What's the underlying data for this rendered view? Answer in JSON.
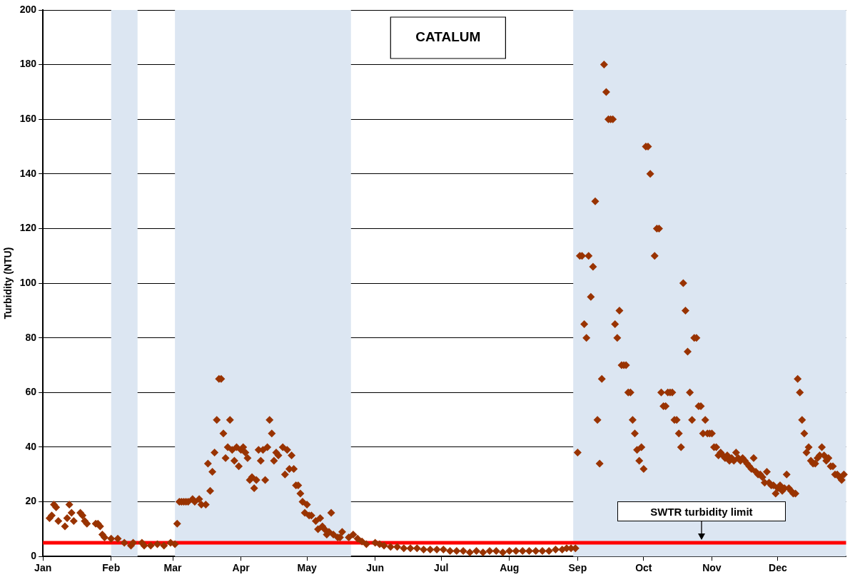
{
  "chart_data": {
    "type": "scatter",
    "title": "CATALUM",
    "ylabel": "Turbidity (NTU)",
    "xlim": [
      "--01-01",
      "--12-31"
    ],
    "xticks": [
      {
        "value": "--01-01",
        "label": "Jan"
      },
      {
        "value": "--02-01",
        "label": "Feb"
      },
      {
        "value": "--03-01",
        "label": "Mar"
      },
      {
        "value": "--04-01",
        "label": "Apr"
      },
      {
        "value": "--05-01",
        "label": "May"
      },
      {
        "value": "--06-01",
        "label": "Jun"
      },
      {
        "value": "--07-01",
        "label": "Jul"
      },
      {
        "value": "--08-01",
        "label": "Aug"
      },
      {
        "value": "--09-01",
        "label": "Sep"
      },
      {
        "value": "--10-01",
        "label": "Oct"
      },
      {
        "value": "--11-01",
        "label": "Nov"
      },
      {
        "value": "--12-01",
        "label": "Dec"
      }
    ],
    "ylim": [
      0,
      200
    ],
    "yticks": [
      0,
      20,
      40,
      60,
      80,
      100,
      120,
      140,
      160,
      180,
      200
    ],
    "grid": "y",
    "legend": false,
    "marker": "diamond",
    "bands": [
      {
        "axis": "x",
        "from": "--02-01",
        "to": "--02-12",
        "color": "#dce6f2"
      },
      {
        "axis": "x",
        "from": "--03-02",
        "to": "--05-20",
        "color": "#dce6f2"
      },
      {
        "axis": "x",
        "from": "--08-30",
        "to": "--12-31",
        "color": "#dce6f2"
      }
    ],
    "ref_lines": [
      {
        "axis": "y",
        "value": 5,
        "label": "SWTR turbidity limit",
        "color": "#ff0000"
      }
    ],
    "series": [
      {
        "color": "#993300",
        "x": [
          "--01-04",
          "--01-05",
          "--01-06",
          "--01-07",
          "--01-08",
          "--01-11",
          "--01-12",
          "--01-13",
          "--01-14",
          "--01-15",
          "--01-18",
          "--01-19",
          "--01-20",
          "--01-21",
          "--01-25",
          "--01-26",
          "--01-27",
          "--01-28",
          "--01-29",
          "--02-01",
          "--02-04",
          "--02-07",
          "--02-10",
          "--02-11",
          "--02-15",
          "--02-16",
          "--02-19",
          "--02-22",
          "--02-25",
          "--02-28",
          "--03-02",
          "--03-03",
          "--03-04",
          "--03-05",
          "--03-06",
          "--03-07",
          "--03-08",
          "--03-10",
          "--03-11",
          "--03-13",
          "--03-14",
          "--03-16",
          "--03-17",
          "--03-18",
          "--03-19",
          "--03-20",
          "--03-21",
          "--03-22",
          "--03-23",
          "--03-24",
          "--03-25",
          "--03-26",
          "--03-27",
          "--03-28",
          "--03-29",
          "--03-30",
          "--03-31",
          "--04-01",
          "--04-02",
          "--04-03",
          "--04-04",
          "--04-05",
          "--04-06",
          "--04-07",
          "--04-08",
          "--04-09",
          "--04-10",
          "--04-11",
          "--04-12",
          "--04-13",
          "--04-14",
          "--04-15",
          "--04-16",
          "--04-17",
          "--04-18",
          "--04-20",
          "--04-21",
          "--04-22",
          "--04-23",
          "--04-24",
          "--04-25",
          "--04-26",
          "--04-27",
          "--04-28",
          "--04-29",
          "--04-30",
          "--05-01",
          "--05-02",
          "--05-03",
          "--05-05",
          "--05-06",
          "--05-07",
          "--05-08",
          "--05-09",
          "--05-10",
          "--05-11",
          "--05-12",
          "--05-13",
          "--05-15",
          "--05-16",
          "--05-17",
          "--05-20",
          "--05-22",
          "--05-24",
          "--05-26",
          "--05-28",
          "--06-01",
          "--06-03",
          "--06-05",
          "--06-08",
          "--06-11",
          "--06-14",
          "--06-17",
          "--06-20",
          "--06-23",
          "--06-26",
          "--06-29",
          "--07-02",
          "--07-05",
          "--07-08",
          "--07-11",
          "--07-14",
          "--07-17",
          "--07-20",
          "--07-23",
          "--07-26",
          "--07-29",
          "--08-01",
          "--08-04",
          "--08-07",
          "--08-10",
          "--08-13",
          "--08-16",
          "--08-19",
          "--08-22",
          "--08-25",
          "--08-27",
          "--08-29",
          "--08-31",
          "--09-01",
          "--09-02",
          "--09-03",
          "--09-04",
          "--09-05",
          "--09-06",
          "--09-07",
          "--09-08",
          "--09-09",
          "--09-10",
          "--09-11",
          "--09-12",
          "--09-13",
          "--09-14",
          "--09-15",
          "--09-16",
          "--09-17",
          "--09-18",
          "--09-19",
          "--09-20",
          "--09-21",
          "--09-22",
          "--09-23",
          "--09-24",
          "--09-25",
          "--09-26",
          "--09-27",
          "--09-28",
          "--09-29",
          "--09-30",
          "--10-01",
          "--10-02",
          "--10-03",
          "--10-04",
          "--10-06",
          "--10-07",
          "--10-08",
          "--10-09",
          "--10-10",
          "--10-11",
          "--10-12",
          "--10-13",
          "--10-14",
          "--10-15",
          "--10-16",
          "--10-17",
          "--10-18",
          "--10-19",
          "--10-20",
          "--10-21",
          "--10-22",
          "--10-23",
          "--10-24",
          "--10-25",
          "--10-26",
          "--10-27",
          "--10-28",
          "--10-29",
          "--10-30",
          "--10-31",
          "--11-01",
          "--11-02",
          "--11-03",
          "--11-04",
          "--11-05",
          "--11-06",
          "--11-07",
          "--11-08",
          "--11-09",
          "--11-10",
          "--11-11",
          "--11-12",
          "--11-13",
          "--11-14",
          "--11-15",
          "--11-16",
          "--11-17",
          "--11-18",
          "--11-19",
          "--11-20",
          "--11-21",
          "--11-22",
          "--11-23",
          "--11-24",
          "--11-25",
          "--11-26",
          "--11-27",
          "--11-28",
          "--11-29",
          "--11-30",
          "--12-01",
          "--12-02",
          "--12-03",
          "--12-04",
          "--12-05",
          "--12-06",
          "--12-07",
          "--12-08",
          "--12-09",
          "--12-10",
          "--12-11",
          "--12-12",
          "--12-13",
          "--12-14",
          "--12-15",
          "--12-16",
          "--12-17",
          "--12-18",
          "--12-19",
          "--12-20",
          "--12-21",
          "--12-22",
          "--12-23",
          "--12-24",
          "--12-25",
          "--12-26",
          "--12-27",
          "--12-28",
          "--12-29",
          "--12-30",
          "--12-31"
        ],
        "values": [
          14,
          15,
          19,
          18,
          13,
          11,
          14,
          19,
          16,
          13,
          16,
          15,
          13,
          12,
          12,
          12,
          11,
          8,
          7,
          6.5,
          6.5,
          5,
          4,
          5,
          5,
          4,
          4,
          4.5,
          4,
          5,
          4.5,
          12,
          20,
          20,
          20,
          20,
          20,
          21,
          20,
          21,
          19,
          19,
          34,
          24,
          31,
          38,
          50,
          65,
          65,
          45,
          36,
          40,
          50,
          39,
          35,
          40,
          33,
          39,
          40,
          38,
          36,
          28,
          29,
          25,
          28,
          39,
          35,
          39,
          28,
          40,
          50,
          45,
          35,
          38,
          37,
          40,
          30,
          39,
          32,
          37,
          32,
          26,
          26,
          23,
          20,
          16,
          19,
          15,
          15,
          13,
          10,
          14,
          11,
          10,
          8,
          9,
          16,
          8,
          7,
          7,
          9,
          7,
          8,
          6.5,
          5.5,
          4.5,
          5,
          4.5,
          4,
          3.5,
          3.5,
          3,
          3,
          3,
          2.5,
          2.5,
          2.5,
          2.5,
          2,
          2,
          2,
          1.5,
          2,
          1.5,
          2,
          2,
          1.5,
          2,
          2,
          2,
          2,
          2,
          2,
          2,
          2.5,
          2.5,
          3,
          3,
          3,
          38,
          110,
          110,
          85,
          80,
          110,
          95,
          106,
          130,
          50,
          34,
          65,
          180,
          170,
          160,
          160,
          160,
          85,
          80,
          90,
          70,
          70,
          70,
          60,
          60,
          50,
          45,
          39,
          35,
          40,
          32,
          150,
          150,
          140,
          110,
          120,
          120,
          60,
          55,
          55,
          60,
          60,
          60,
          50,
          50,
          45,
          40,
          100,
          90,
          75,
          60,
          50,
          80,
          80,
          55,
          55,
          45,
          50,
          45,
          45,
          45,
          40,
          40,
          37,
          38,
          37,
          36,
          37,
          35,
          36,
          35,
          38,
          36,
          35,
          36,
          35,
          34,
          33,
          32,
          36,
          31,
          30,
          30,
          29,
          27,
          31,
          27,
          26,
          26,
          23,
          25,
          26,
          24,
          25,
          30,
          25,
          24,
          23,
          23,
          65,
          60,
          50,
          45,
          38,
          40,
          35,
          34,
          34,
          36,
          37,
          40,
          37,
          35,
          36,
          33,
          33,
          30,
          30,
          29,
          28,
          30
        ]
      }
    ]
  }
}
